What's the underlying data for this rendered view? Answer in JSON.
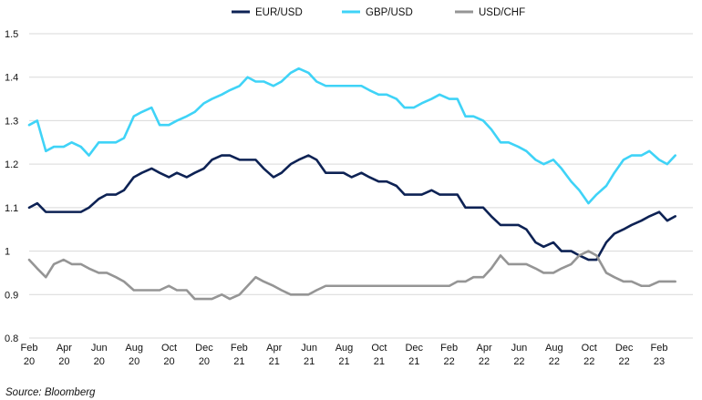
{
  "chart_data": {
    "type": "line",
    "title": "",
    "xlabel": "",
    "ylabel": "",
    "ylim": [
      0.8,
      1.5
    ],
    "yticks": [
      "0.8",
      "0.9",
      "1",
      "1.1",
      "1.2",
      "1.3",
      "1.4",
      "1.5"
    ],
    "xticks": [
      {
        "month": "Feb",
        "year": "20"
      },
      {
        "month": "Apr",
        "year": "20"
      },
      {
        "month": "Jun",
        "year": "20"
      },
      {
        "month": "Aug",
        "year": "20"
      },
      {
        "month": "Oct",
        "year": "20"
      },
      {
        "month": "Dec",
        "year": "20"
      },
      {
        "month": "Feb",
        "year": "21"
      },
      {
        "month": "Apr",
        "year": "21"
      },
      {
        "month": "Jun",
        "year": "21"
      },
      {
        "month": "Aug",
        "year": "21"
      },
      {
        "month": "Oct",
        "year": "21"
      },
      {
        "month": "Dec",
        "year": "21"
      },
      {
        "month": "Feb",
        "year": "22"
      },
      {
        "month": "Apr",
        "year": "22"
      },
      {
        "month": "Jun",
        "year": "22"
      },
      {
        "month": "Aug",
        "year": "22"
      },
      {
        "month": "Oct",
        "year": "22"
      },
      {
        "month": "Dec",
        "year": "22"
      },
      {
        "month": "Feb",
        "year": "23"
      }
    ],
    "grid": "horizontal",
    "legend_position": "top-center",
    "source": "Source: Bloomberg",
    "x": [
      "2020-02-01",
      "2020-02-15",
      "2020-03-01",
      "2020-03-15",
      "2020-04-01",
      "2020-04-15",
      "2020-05-01",
      "2020-05-15",
      "2020-06-01",
      "2020-06-15",
      "2020-07-01",
      "2020-07-15",
      "2020-08-01",
      "2020-08-15",
      "2020-09-01",
      "2020-09-15",
      "2020-10-01",
      "2020-10-15",
      "2020-11-01",
      "2020-11-15",
      "2020-12-01",
      "2020-12-15",
      "2021-01-01",
      "2021-01-15",
      "2021-02-01",
      "2021-02-15",
      "2021-03-01",
      "2021-03-15",
      "2021-04-01",
      "2021-04-15",
      "2021-05-01",
      "2021-05-15",
      "2021-06-01",
      "2021-06-15",
      "2021-07-01",
      "2021-07-15",
      "2021-08-01",
      "2021-08-15",
      "2021-09-01",
      "2021-09-15",
      "2021-10-01",
      "2021-10-15",
      "2021-11-01",
      "2021-11-15",
      "2021-12-01",
      "2021-12-15",
      "2022-01-01",
      "2022-01-15",
      "2022-02-01",
      "2022-02-15",
      "2022-03-01",
      "2022-03-15",
      "2022-04-01",
      "2022-04-15",
      "2022-05-01",
      "2022-05-15",
      "2022-06-01",
      "2022-06-15",
      "2022-07-01",
      "2022-07-15",
      "2022-08-01",
      "2022-08-15",
      "2022-09-01",
      "2022-09-15",
      "2022-10-01",
      "2022-10-15",
      "2022-11-01",
      "2022-11-15",
      "2022-12-01",
      "2022-12-15",
      "2023-01-01",
      "2023-01-15",
      "2023-02-01",
      "2023-02-15",
      "2023-03-01"
    ],
    "series": [
      {
        "name": "EUR/USD",
        "color": "#0d2254",
        "values": [
          1.1,
          1.11,
          1.09,
          1.09,
          1.09,
          1.09,
          1.09,
          1.1,
          1.12,
          1.13,
          1.13,
          1.14,
          1.17,
          1.18,
          1.19,
          1.18,
          1.17,
          1.18,
          1.17,
          1.18,
          1.19,
          1.21,
          1.22,
          1.22,
          1.21,
          1.21,
          1.21,
          1.19,
          1.17,
          1.18,
          1.2,
          1.21,
          1.22,
          1.21,
          1.18,
          1.18,
          1.18,
          1.17,
          1.18,
          1.17,
          1.16,
          1.16,
          1.15,
          1.13,
          1.13,
          1.13,
          1.14,
          1.13,
          1.13,
          1.13,
          1.1,
          1.1,
          1.1,
          1.08,
          1.06,
          1.06,
          1.06,
          1.05,
          1.02,
          1.01,
          1.02,
          1.0,
          1.0,
          0.99,
          0.98,
          0.98,
          1.02,
          1.04,
          1.05,
          1.06,
          1.07,
          1.08,
          1.09,
          1.07,
          1.08
        ]
      },
      {
        "name": "GBP/USD",
        "color": "#3fd3f7",
        "values": [
          1.29,
          1.3,
          1.23,
          1.24,
          1.24,
          1.25,
          1.24,
          1.22,
          1.25,
          1.25,
          1.25,
          1.26,
          1.31,
          1.32,
          1.33,
          1.29,
          1.29,
          1.3,
          1.31,
          1.32,
          1.34,
          1.35,
          1.36,
          1.37,
          1.38,
          1.4,
          1.39,
          1.39,
          1.38,
          1.39,
          1.41,
          1.42,
          1.41,
          1.39,
          1.38,
          1.38,
          1.38,
          1.38,
          1.38,
          1.37,
          1.36,
          1.36,
          1.35,
          1.33,
          1.33,
          1.34,
          1.35,
          1.36,
          1.35,
          1.35,
          1.31,
          1.31,
          1.3,
          1.28,
          1.25,
          1.25,
          1.24,
          1.23,
          1.21,
          1.2,
          1.21,
          1.19,
          1.16,
          1.14,
          1.11,
          1.13,
          1.15,
          1.18,
          1.21,
          1.22,
          1.22,
          1.23,
          1.21,
          1.2,
          1.22
        ]
      },
      {
        "name": "USD/CHF",
        "color": "#959595",
        "values": [
          0.98,
          0.96,
          0.94,
          0.97,
          0.98,
          0.97,
          0.97,
          0.96,
          0.95,
          0.95,
          0.94,
          0.93,
          0.91,
          0.91,
          0.91,
          0.91,
          0.92,
          0.91,
          0.91,
          0.89,
          0.89,
          0.89,
          0.9,
          0.89,
          0.9,
          0.92,
          0.94,
          0.93,
          0.92,
          0.91,
          0.9,
          0.9,
          0.9,
          0.91,
          0.92,
          0.92,
          0.92,
          0.92,
          0.92,
          0.92,
          0.92,
          0.92,
          0.92,
          0.92,
          0.92,
          0.92,
          0.92,
          0.92,
          0.92,
          0.93,
          0.93,
          0.94,
          0.94,
          0.96,
          0.99,
          0.97,
          0.97,
          0.97,
          0.96,
          0.95,
          0.95,
          0.96,
          0.97,
          0.99,
          1.0,
          0.99,
          0.95,
          0.94,
          0.93,
          0.93,
          0.92,
          0.92,
          0.93,
          0.93,
          0.93
        ]
      }
    ]
  }
}
